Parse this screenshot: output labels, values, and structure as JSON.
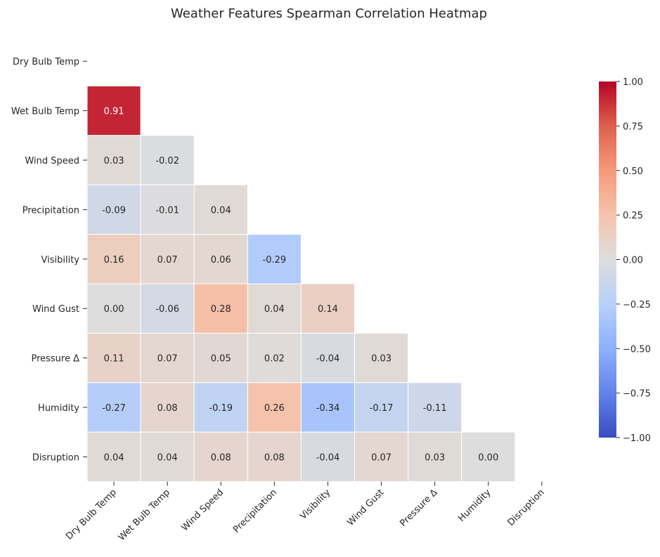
{
  "chart_data": {
    "type": "heatmap",
    "title": "Weather Features Spearman Correlation Heatmap",
    "mask": "upper-triangle-including-diagonal",
    "labels": [
      "Dry Bulb Temp",
      "Wet Bulb Temp",
      "Wind Speed",
      "Precipitation",
      "Visibility",
      "Wind Gust",
      "Pressure Δ",
      "Humidity",
      "Disruption"
    ],
    "lower_triangle_values": [
      [],
      [
        0.91
      ],
      [
        0.03,
        -0.02
      ],
      [
        -0.09,
        -0.01,
        0.04
      ],
      [
        0.16,
        0.07,
        0.06,
        -0.29
      ],
      [
        0.0,
        -0.06,
        0.28,
        0.04,
        0.14
      ],
      [
        0.11,
        0.07,
        0.05,
        0.02,
        -0.04,
        0.03
      ],
      [
        -0.27,
        0.08,
        -0.19,
        0.26,
        -0.34,
        -0.17,
        -0.11
      ],
      [
        0.04,
        0.04,
        0.08,
        0.08,
        -0.04,
        0.07,
        0.03,
        0.0
      ]
    ],
    "value_range": [
      -1,
      1
    ],
    "colormap": "coolwarm",
    "colorbar": {
      "ticks": [
        1.0,
        0.75,
        0.5,
        0.25,
        0.0,
        -0.25,
        -0.5,
        -0.75,
        -1.0
      ],
      "tick_labels": [
        "1.00",
        "0.75",
        "0.50",
        "0.25",
        "0.00",
        "−0.25",
        "−0.50",
        "−0.75",
        "−1.00"
      ]
    },
    "xlabel": "",
    "ylabel": "",
    "grid": false,
    "legend": "colorbar-right"
  }
}
